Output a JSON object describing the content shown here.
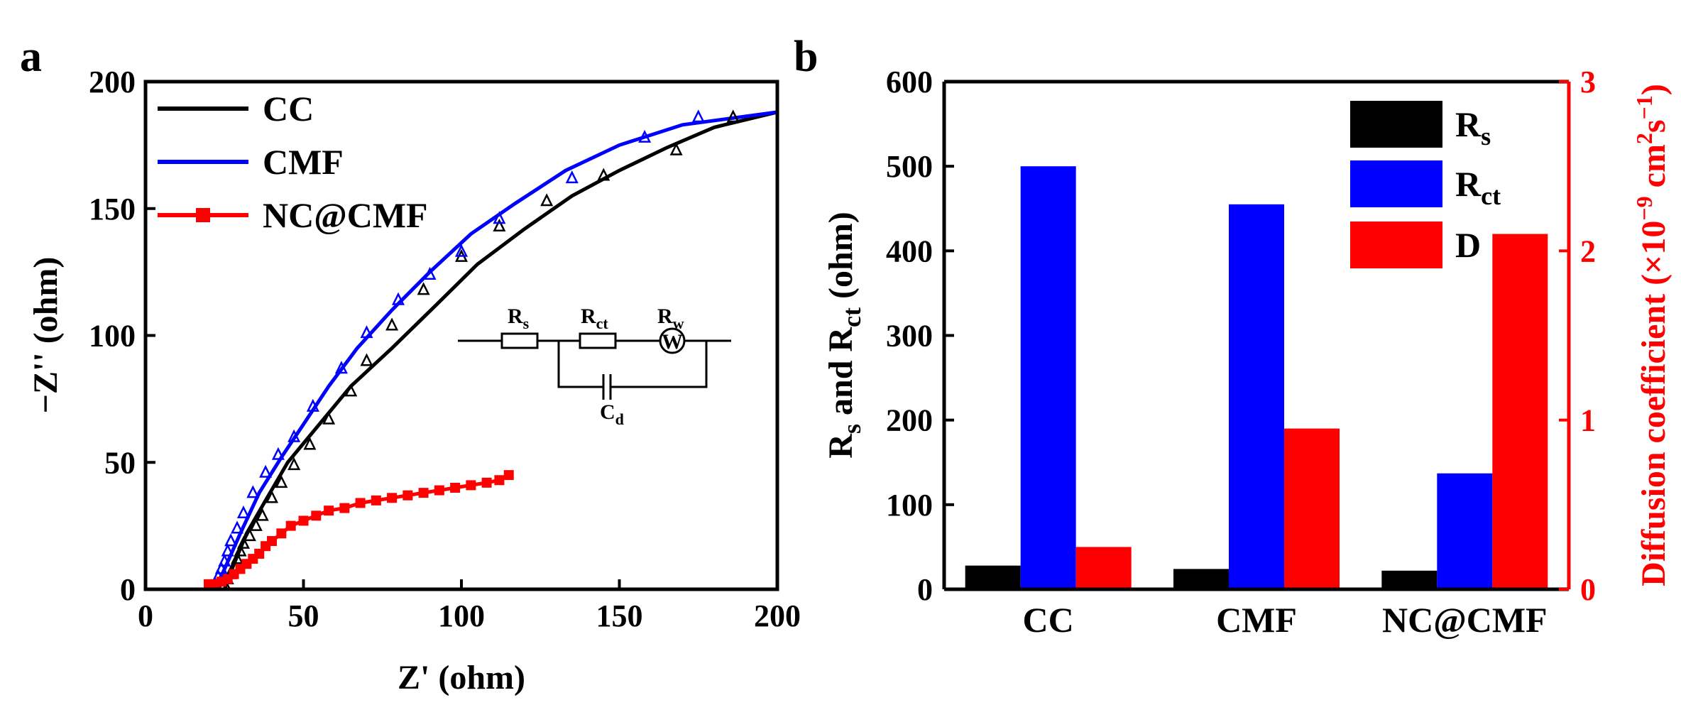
{
  "chart_data": [
    {
      "panel_label": "a",
      "type": "scatter",
      "xlabel": "Z' (ohm)",
      "ylabel": "−Z'' (ohm)",
      "xlim": [
        0,
        200
      ],
      "ylim": [
        0,
        200
      ],
      "xticks": [
        "0",
        "50",
        "100",
        "150",
        "200"
      ],
      "yticks": [
        "0",
        "50",
        "100",
        "150",
        "200"
      ],
      "series": [
        {
          "name": "CC",
          "color": "#000000",
          "marker": "triangle",
          "points": [
            [
              25,
              2
            ],
            [
              26,
              4
            ],
            [
              27,
              6
            ],
            [
              28,
              9
            ],
            [
              29,
              12
            ],
            [
              30,
              15
            ],
            [
              31,
              18
            ],
            [
              33,
              21
            ],
            [
              35,
              25
            ],
            [
              37,
              29
            ],
            [
              40,
              36
            ],
            [
              43,
              42
            ],
            [
              47,
              49
            ],
            [
              52,
              57
            ],
            [
              58,
              67
            ],
            [
              65,
              78
            ],
            [
              70,
              90
            ],
            [
              78,
              104
            ],
            [
              88,
              118
            ],
            [
              100,
              131
            ],
            [
              112,
              143
            ],
            [
              127,
              153
            ],
            [
              145,
              163
            ],
            [
              168,
              173
            ],
            [
              186,
              186
            ]
          ],
          "fit": [
            [
              25,
              0
            ],
            [
              28,
              10
            ],
            [
              32,
              22
            ],
            [
              38,
              35
            ],
            [
              45,
              50
            ],
            [
              55,
              65
            ],
            [
              65,
              80
            ],
            [
              78,
              95
            ],
            [
              92,
              112
            ],
            [
              105,
              128
            ],
            [
              120,
              142
            ],
            [
              135,
              155
            ],
            [
              150,
              165
            ],
            [
              165,
              174
            ],
            [
              180,
              182
            ],
            [
              200,
              188
            ]
          ]
        },
        {
          "name": "CMF",
          "color": "#0000ff",
          "marker": "triangle",
          "points": [
            [
              22,
              2
            ],
            [
              23,
              5
            ],
            [
              24,
              8
            ],
            [
              25,
              11
            ],
            [
              26,
              15
            ],
            [
              27,
              19
            ],
            [
              29,
              24
            ],
            [
              31,
              30
            ],
            [
              34,
              38
            ],
            [
              38,
              46
            ],
            [
              42,
              53
            ],
            [
              47,
              60
            ],
            [
              53,
              72
            ],
            [
              62,
              87
            ],
            [
              70,
              101
            ],
            [
              80,
              114
            ],
            [
              90,
              124
            ],
            [
              100,
              133
            ],
            [
              112,
              146
            ],
            [
              135,
              162
            ],
            [
              158,
              178
            ],
            [
              175,
              186
            ]
          ],
          "fit": [
            [
              22,
              0
            ],
            [
              25,
              8
            ],
            [
              30,
              22
            ],
            [
              36,
              38
            ],
            [
              43,
              52
            ],
            [
              50,
              65
            ],
            [
              58,
              80
            ],
            [
              67,
              95
            ],
            [
              78,
              110
            ],
            [
              90,
              125
            ],
            [
              103,
              140
            ],
            [
              117,
              152
            ],
            [
              133,
              165
            ],
            [
              150,
              175
            ],
            [
              170,
              183
            ],
            [
              200,
              188
            ]
          ]
        },
        {
          "name": "NC@CMF",
          "color": "#ff0000",
          "marker": "square",
          "points": [
            [
              20,
              2
            ],
            [
              22,
              2
            ],
            [
              24,
              3
            ],
            [
              26,
              4
            ],
            [
              28,
              6
            ],
            [
              30,
              8
            ],
            [
              32,
              10
            ],
            [
              34,
              12
            ],
            [
              36,
              14
            ],
            [
              38,
              17
            ],
            [
              40,
              19
            ],
            [
              43,
              22
            ],
            [
              46,
              25
            ],
            [
              50,
              27
            ],
            [
              54,
              29
            ],
            [
              58,
              31
            ],
            [
              63,
              32
            ],
            [
              68,
              34
            ],
            [
              73,
              35
            ],
            [
              78,
              36
            ],
            [
              83,
              37
            ],
            [
              88,
              38
            ],
            [
              93,
              39
            ],
            [
              98,
              40
            ],
            [
              103,
              41
            ],
            [
              108,
              42
            ],
            [
              112,
              43
            ],
            [
              115,
              45
            ]
          ]
        }
      ],
      "legend": [
        "CC",
        "CMF",
        "NC@CMF"
      ],
      "inset_circuit": {
        "labels": [
          "R",
          "s",
          "R",
          "ct",
          "R",
          "w",
          "C",
          "d",
          "W"
        ]
      }
    },
    {
      "panel_label": "b",
      "type": "bar",
      "categories": [
        "CC",
        "CMF",
        "NC@CMF"
      ],
      "ylabel_left": {
        "R1": "R",
        "s1": "s",
        "mid": " and R",
        "ct": "ct",
        "unit": " (ohm)"
      },
      "ylabel_right": {
        "main": "Diffusion coefficient (×10",
        "e1": "−9",
        "mid": " cm",
        "e2": "2",
        "s": "s",
        "e3": "−1",
        "end": ")"
      },
      "ylim_left": [
        0,
        600
      ],
      "ylim_right": [
        0,
        3
      ],
      "yticks_left": [
        "0",
        "100",
        "200",
        "300",
        "400",
        "500",
        "600"
      ],
      "yticks_right": [
        "0",
        "1",
        "2",
        "3"
      ],
      "series": [
        {
          "name": "R",
          "sub": "s",
          "axis": "left",
          "color": "#000000",
          "values": [
            28,
            24,
            22
          ]
        },
        {
          "name": "R",
          "sub": "ct",
          "axis": "left",
          "color": "#0000ff",
          "values": [
            500,
            455,
            137
          ]
        },
        {
          "name": "D",
          "sub": "",
          "axis": "right",
          "color": "#ff0000",
          "values": [
            0.25,
            0.95,
            2.1
          ]
        }
      ],
      "legend": [
        "R",
        "s",
        "R",
        "ct",
        "D"
      ]
    }
  ]
}
